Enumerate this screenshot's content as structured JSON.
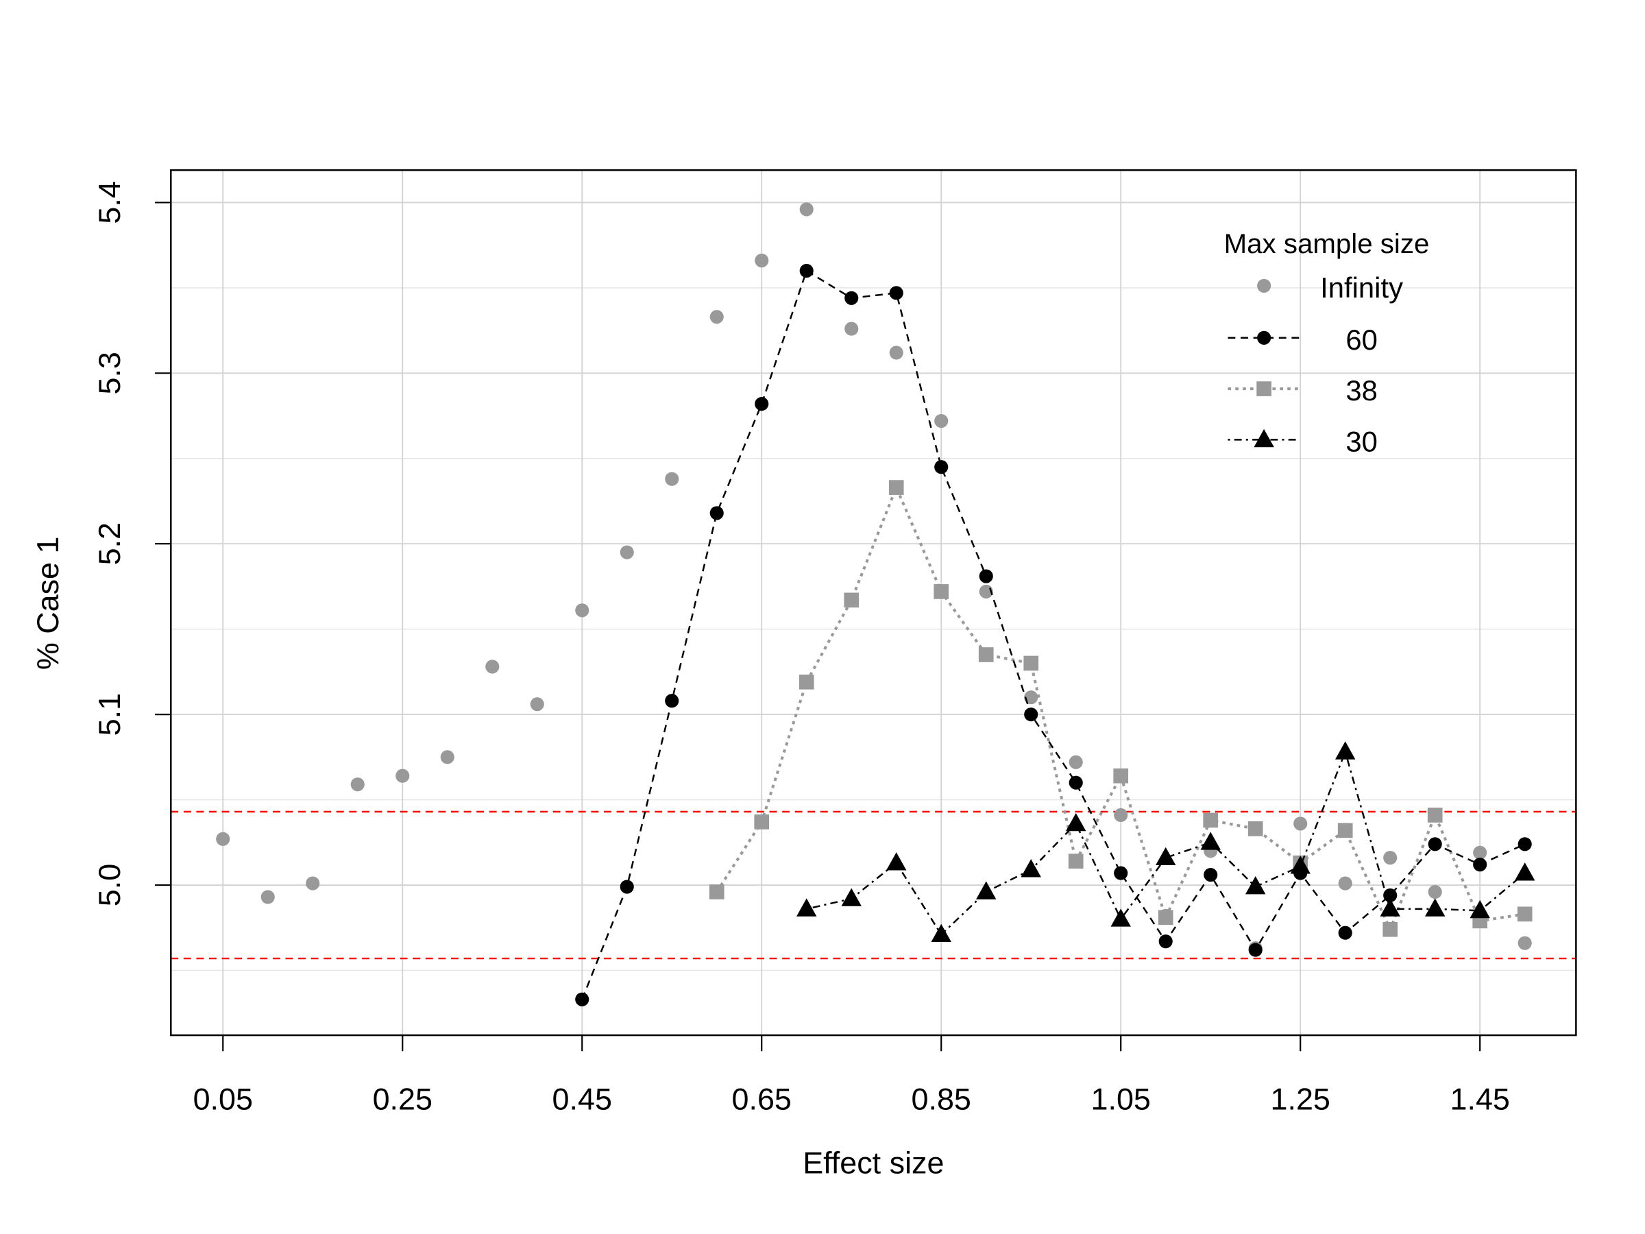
{
  "chart_data": {
    "type": "line",
    "title": "",
    "xlabel": "Effect size",
    "ylabel": "% Case 1",
    "xlim": [
      -0.008,
      1.557
    ],
    "ylim": [
      4.912,
      5.419
    ],
    "xticks": [
      "0.05",
      "0.25",
      "0.45",
      "0.65",
      "0.85",
      "1.05",
      "1.25",
      "1.45"
    ],
    "yticks": [
      "5.0",
      "5.1",
      "5.2",
      "5.3",
      "5.4"
    ],
    "grid": true,
    "legend": {
      "title": "Max sample size",
      "position": "top-right"
    },
    "reference_lines": {
      "color": "#ff0000",
      "style": "dashed",
      "values": [
        5.043,
        4.957
      ]
    },
    "x": [
      0.05,
      0.1,
      0.15,
      0.2,
      0.25,
      0.3,
      0.35,
      0.4,
      0.45,
      0.5,
      0.55,
      0.6,
      0.65,
      0.7,
      0.75,
      0.8,
      0.85,
      0.9,
      0.95,
      1.0,
      1.05,
      1.1,
      1.15,
      1.2,
      1.25,
      1.3,
      1.35,
      1.4,
      1.45,
      1.5
    ],
    "series": [
      {
        "name": "Infinity",
        "color": "#999999",
        "marker": "circle",
        "line": "none",
        "values": [
          5.027,
          4.993,
          5.001,
          5.059,
          5.064,
          5.075,
          5.128,
          5.106,
          5.161,
          5.195,
          5.238,
          5.333,
          5.366,
          5.396,
          5.326,
          5.312,
          5.272,
          5.172,
          5.11,
          5.072,
          5.041,
          4.982,
          5.02,
          4.963,
          5.036,
          5.001,
          5.016,
          4.996,
          5.019,
          4.966
        ]
      },
      {
        "name": "60",
        "color": "#000000",
        "marker": "circle",
        "line": "dashed",
        "values": [
          null,
          null,
          null,
          null,
          null,
          null,
          null,
          null,
          4.933,
          4.999,
          5.108,
          5.218,
          5.282,
          5.36,
          5.344,
          5.347,
          5.245,
          5.181,
          5.1,
          5.06,
          5.007,
          4.967,
          5.006,
          4.962,
          5.007,
          4.972,
          4.994,
          5.024,
          5.012,
          5.024
        ]
      },
      {
        "name": "38",
        "color": "#999999",
        "marker": "square",
        "line": "dotted",
        "values": [
          null,
          null,
          null,
          null,
          null,
          null,
          null,
          null,
          null,
          null,
          null,
          4.996,
          5.037,
          5.119,
          5.167,
          5.233,
          5.172,
          5.135,
          5.13,
          5.014,
          5.064,
          4.981,
          5.038,
          5.033,
          5.013,
          5.032,
          4.974,
          5.041,
          4.979,
          4.983
        ]
      },
      {
        "name": "30",
        "color": "#000000",
        "marker": "triangle",
        "line": "dotdash",
        "values": [
          null,
          null,
          null,
          null,
          null,
          null,
          null,
          null,
          null,
          null,
          null,
          null,
          null,
          4.986,
          4.992,
          5.013,
          4.971,
          4.996,
          5.009,
          5.036,
          4.98,
          5.016,
          5.025,
          4.999,
          5.011,
          5.078,
          4.986,
          4.986,
          4.985,
          5.007
        ]
      }
    ]
  }
}
